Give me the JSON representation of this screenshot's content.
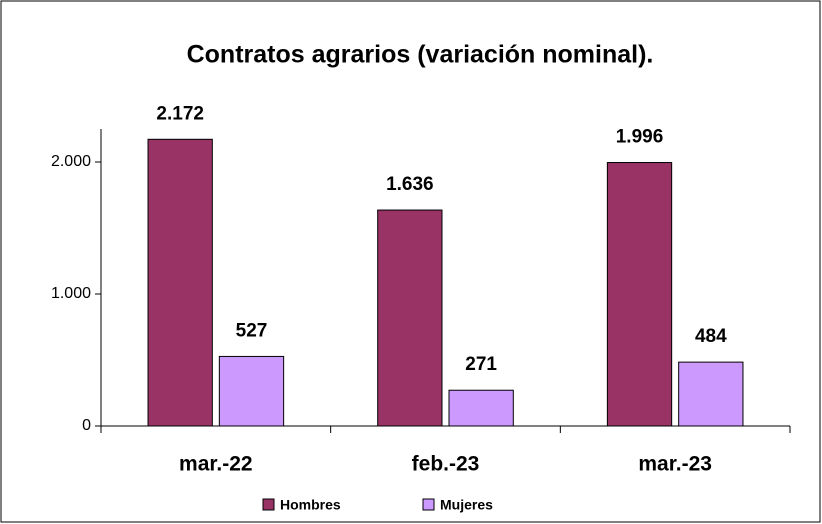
{
  "chart_data": {
    "type": "bar",
    "title": "Contratos agrarios  (variación nominal).",
    "categories": [
      "mar.-22",
      "feb.-23",
      "mar.-23"
    ],
    "series": [
      {
        "name": "Hombres",
        "color": "#993366",
        "values": [
          2172,
          1636,
          1996
        ],
        "value_labels": [
          "2.172",
          "1.636",
          "1.996"
        ]
      },
      {
        "name": "Mujeres",
        "color": "#cc99ff",
        "values": [
          527,
          271,
          484
        ],
        "value_labels": [
          "527",
          "271",
          "484"
        ]
      }
    ],
    "ylim": [
      0,
      2250
    ],
    "yticks": [
      0,
      {
        "value": 1000,
        "label": "1.000"
      },
      {
        "value": 2000,
        "label": "2.000"
      }
    ],
    "grid": false,
    "legend": "bottom"
  }
}
